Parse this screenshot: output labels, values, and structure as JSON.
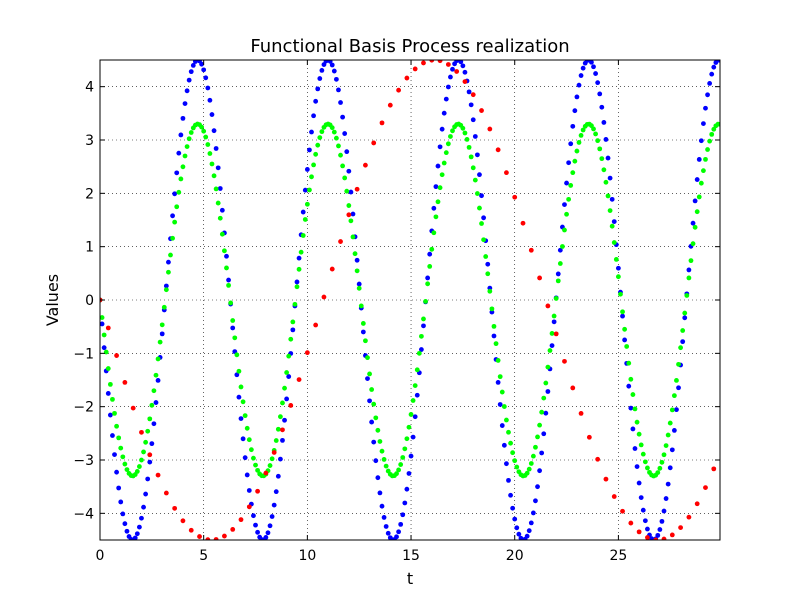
{
  "chart_data": {
    "type": "scatter",
    "title": "Functional Basis Process realization",
    "xlabel": "t",
    "ylabel": "Values",
    "xlim": [
      0,
      29.9
    ],
    "ylim": [
      -4.5,
      4.5
    ],
    "grid": true,
    "grid_style": "dotted",
    "x_ticks": [
      0,
      5,
      10,
      15,
      20,
      25
    ],
    "x_tick_labels": [
      "0",
      "5",
      "10",
      "15",
      "20",
      "25"
    ],
    "y_ticks": [
      -4,
      -3,
      -2,
      -1,
      0,
      1,
      2,
      3,
      4
    ],
    "y_tick_labels": [
      "−4",
      "−3",
      "−2",
      "−1",
      "0",
      "1",
      "2",
      "3",
      "4"
    ],
    "series": [
      {
        "color": "#0000ff",
        "function": "-4.5*sin(t)",
        "t_start": 0,
        "t_end": 29.9,
        "t_step": 0.1
      },
      {
        "color": "#00ff00",
        "function": "-3.3*sin(t)",
        "t_start": 0,
        "t_end": 29.9,
        "t_step": 0.1
      },
      {
        "color": "#ff0000",
        "function": "-4.5*sin(16*t)",
        "t_start": 0,
        "t_end": 29.9,
        "t_step": 0.4
      }
    ]
  }
}
